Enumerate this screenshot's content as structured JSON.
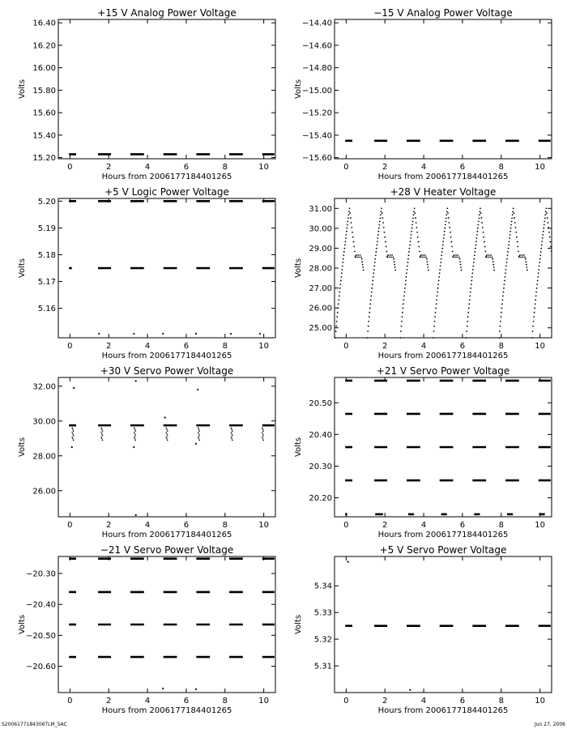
{
  "footer": {
    "left": "S2006177184306TLM_SAC",
    "right": "Jun 27, 2006"
  },
  "chart_data": [
    {
      "type": "scatter",
      "title": "+15 V Analog Power Voltage",
      "xlabel": "Hours from 2006177184401265",
      "ylabel": "Volts",
      "xlim": [
        -0.6,
        10.6
      ],
      "ylim": [
        15.19,
        16.43
      ],
      "xticks": [
        0,
        2,
        4,
        6,
        8,
        10
      ],
      "yticks": [
        15.2,
        15.4,
        15.6,
        15.8,
        16.0,
        16.2,
        16.4
      ],
      "ytick_decimals": 2,
      "bands": [
        {
          "y": 15.23,
          "segments": [
            [
              -0.05,
              0.32
            ],
            [
              1.45,
              2.12
            ],
            [
              3.12,
              3.82
            ],
            [
              4.82,
              5.52
            ],
            [
              6.52,
              7.22
            ],
            [
              8.22,
              8.92
            ],
            [
              9.92,
              10.55
            ]
          ]
        }
      ],
      "points": [],
      "pattern": null
    },
    {
      "type": "scatter",
      "title": "−15 V Analog Power Voltage",
      "xlabel": "Hours from 2006177184401265",
      "ylabel": "Volts",
      "xlim": [
        -0.6,
        10.6
      ],
      "ylim": [
        -15.61,
        -14.37
      ],
      "xticks": [
        0,
        2,
        4,
        6,
        8,
        10
      ],
      "yticks": [
        -15.6,
        -15.4,
        -15.2,
        -15.0,
        -14.8,
        -14.6,
        -14.4
      ],
      "ytick_decimals": 2,
      "bands": [
        {
          "y": -15.45,
          "segments": [
            [
              -0.05,
              0.32
            ],
            [
              1.45,
              2.12
            ],
            [
              3.12,
              3.82
            ],
            [
              4.82,
              5.52
            ],
            [
              6.52,
              7.22
            ],
            [
              8.22,
              8.92
            ],
            [
              9.92,
              10.55
            ]
          ]
        }
      ],
      "points": [],
      "pattern": null
    },
    {
      "type": "scatter",
      "title": "+5 V Logic Power Voltage",
      "xlabel": "Hours from 2006177184401265",
      "ylabel": "Volts",
      "xlim": [
        -0.6,
        10.6
      ],
      "ylim": [
        5.149,
        5.201
      ],
      "xticks": [
        0,
        2,
        4,
        6,
        8,
        10
      ],
      "yticks": [
        5.16,
        5.17,
        5.18,
        5.19,
        5.2
      ],
      "ytick_decimals": 2,
      "bands": [
        {
          "y": 5.2,
          "segments": [
            [
              -0.05,
              0.32
            ],
            [
              1.45,
              2.12
            ],
            [
              3.12,
              3.82
            ],
            [
              4.82,
              5.52
            ],
            [
              6.52,
              7.22
            ],
            [
              8.22,
              8.92
            ],
            [
              9.92,
              10.55
            ]
          ]
        },
        {
          "y": 5.175,
          "segments": [
            [
              -0.05,
              0.1
            ],
            [
              1.45,
              2.12
            ],
            [
              3.12,
              3.82
            ],
            [
              4.82,
              5.52
            ],
            [
              6.52,
              7.22
            ],
            [
              8.22,
              8.92
            ],
            [
              9.92,
              10.55
            ]
          ]
        }
      ],
      "points": [
        [
          1.5,
          5.1505
        ],
        [
          3.3,
          5.1505
        ],
        [
          4.8,
          5.1505
        ],
        [
          6.5,
          5.1505
        ],
        [
          8.3,
          5.1505
        ],
        [
          9.8,
          5.1505
        ]
      ],
      "pattern": null
    },
    {
      "type": "scatter",
      "title": "+28 V Heater Voltage",
      "xlabel": "Hours from 2006177184401265",
      "ylabel": "Volts",
      "xlim": [
        -0.6,
        10.6
      ],
      "ylim": [
        24.5,
        31.5
      ],
      "xticks": [
        0,
        2,
        4,
        6,
        8,
        10
      ],
      "yticks": [
        25,
        26,
        27,
        28,
        29,
        30,
        31
      ],
      "ytick_decimals": 2,
      "bands": [],
      "points": [],
      "pattern": {
        "kind": "sawtooth",
        "starts": [
          -0.55,
          1.1,
          2.8,
          4.5,
          6.2,
          7.9,
          9.6
        ],
        "period": 1.68,
        "ymin": 24.5,
        "ymax": 31.0,
        "plateau": 28.6,
        "low": 27.9
      }
    },
    {
      "type": "scatter",
      "title": "+30 V Servo Power Voltage",
      "xlabel": "Hours from 2006177184401265",
      "ylabel": "Volts",
      "xlim": [
        -0.6,
        10.6
      ],
      "ylim": [
        24.5,
        32.5
      ],
      "xticks": [
        0,
        2,
        4,
        6,
        8,
        10
      ],
      "yticks": [
        26,
        28,
        30,
        32
      ],
      "ytick_decimals": 2,
      "bands": [
        {
          "y": 29.75,
          "segments": [
            [
              -0.05,
              0.32
            ],
            [
              1.45,
              2.12
            ],
            [
              3.12,
              3.82
            ],
            [
              4.82,
              5.52
            ],
            [
              6.52,
              7.22
            ],
            [
              8.22,
              8.92
            ],
            [
              9.92,
              10.55
            ]
          ]
        }
      ],
      "points": [
        [
          0.2,
          31.9
        ],
        [
          3.4,
          32.3
        ],
        [
          6.6,
          31.8
        ],
        [
          4.9,
          30.2
        ],
        [
          0.1,
          28.5
        ],
        [
          3.3,
          28.5
        ],
        [
          6.5,
          28.7
        ],
        [
          3.4,
          24.6
        ]
      ],
      "pattern": {
        "kind": "droops",
        "xs": [
          0.15,
          1.65,
          3.35,
          5.0,
          6.65,
          8.35,
          9.95
        ],
        "from": 29.6,
        "to": 28.9
      }
    },
    {
      "type": "scatter",
      "title": "+21 V Servo Power Voltage",
      "xlabel": "Hours from 2006177184401265",
      "ylabel": "Volts",
      "xlim": [
        -0.6,
        10.6
      ],
      "ylim": [
        20.14,
        20.58
      ],
      "xticks": [
        0,
        2,
        4,
        6,
        8,
        10
      ],
      "yticks": [
        20.2,
        20.3,
        20.4,
        20.5
      ],
      "ytick_decimals": 2,
      "bands": [
        {
          "y": 20.57,
          "segments": [
            [
              -0.05,
              0.32
            ],
            [
              1.45,
              2.12
            ],
            [
              3.12,
              3.82
            ],
            [
              4.82,
              5.52
            ],
            [
              6.52,
              7.22
            ],
            [
              8.22,
              8.92
            ],
            [
              9.92,
              10.55
            ]
          ]
        },
        {
          "y": 20.465,
          "segments": [
            [
              -0.05,
              0.32
            ],
            [
              1.45,
              2.12
            ],
            [
              3.12,
              3.82
            ],
            [
              4.82,
              5.52
            ],
            [
              6.52,
              7.22
            ],
            [
              8.22,
              8.92
            ],
            [
              9.92,
              10.55
            ]
          ]
        },
        {
          "y": 20.36,
          "segments": [
            [
              -0.05,
              0.32
            ],
            [
              1.45,
              2.12
            ],
            [
              3.12,
              3.82
            ],
            [
              4.82,
              5.52
            ],
            [
              6.52,
              7.22
            ],
            [
              8.22,
              8.92
            ],
            [
              9.92,
              10.55
            ]
          ]
        },
        {
          "y": 20.255,
          "segments": [
            [
              -0.05,
              0.32
            ],
            [
              1.45,
              2.12
            ],
            [
              3.12,
              3.82
            ],
            [
              4.82,
              5.52
            ],
            [
              6.52,
              7.22
            ],
            [
              8.22,
              8.92
            ],
            [
              9.92,
              10.55
            ]
          ]
        },
        {
          "y": 20.148,
          "segments": [
            [
              -0.05,
              0.05
            ],
            [
              1.5,
              1.9
            ],
            [
              3.2,
              3.5
            ],
            [
              4.9,
              5.2
            ],
            [
              6.6,
              6.9
            ],
            [
              8.3,
              8.6
            ],
            [
              9.95,
              10.25
            ]
          ]
        }
      ],
      "points": [],
      "pattern": null
    },
    {
      "type": "scatter",
      "title": "−21 V Servo Power Voltage",
      "xlabel": "Hours from 2006177184401265",
      "ylabel": "Volts",
      "xlim": [
        -0.6,
        10.6
      ],
      "ylim": [
        -20.685,
        -20.245
      ],
      "xticks": [
        0,
        2,
        4,
        6,
        8,
        10
      ],
      "yticks": [
        -20.6,
        -20.5,
        -20.4,
        -20.3
      ],
      "ytick_decimals": 2,
      "bands": [
        {
          "y": -20.252,
          "segments": [
            [
              -0.05,
              0.32
            ],
            [
              1.45,
              2.12
            ],
            [
              3.12,
              3.82
            ],
            [
              4.82,
              5.52
            ],
            [
              6.52,
              7.22
            ],
            [
              8.22,
              8.92
            ],
            [
              9.92,
              10.55
            ]
          ]
        },
        {
          "y": -20.36,
          "segments": [
            [
              -0.05,
              0.32
            ],
            [
              1.45,
              2.12
            ],
            [
              3.12,
              3.82
            ],
            [
              4.82,
              5.52
            ],
            [
              6.52,
              7.22
            ],
            [
              8.22,
              8.92
            ],
            [
              9.92,
              10.55
            ]
          ]
        },
        {
          "y": -20.465,
          "segments": [
            [
              -0.05,
              0.32
            ],
            [
              1.45,
              2.12
            ],
            [
              3.12,
              3.82
            ],
            [
              4.82,
              5.52
            ],
            [
              6.52,
              7.22
            ],
            [
              8.22,
              8.92
            ],
            [
              9.92,
              10.55
            ]
          ]
        },
        {
          "y": -20.57,
          "segments": [
            [
              -0.05,
              0.32
            ],
            [
              1.45,
              2.12
            ],
            [
              3.12,
              3.82
            ],
            [
              4.82,
              5.52
            ],
            [
              6.52,
              7.22
            ],
            [
              8.22,
              8.92
            ],
            [
              9.92,
              10.55
            ]
          ]
        }
      ],
      "points": [
        [
          4.8,
          -20.672
        ],
        [
          6.5,
          -20.674
        ]
      ],
      "pattern": null
    },
    {
      "type": "scatter",
      "title": "+5 V Servo Power Voltage",
      "xlabel": "Hours from 2006177184401265",
      "ylabel": "Volts",
      "xlim": [
        -0.6,
        10.6
      ],
      "ylim": [
        5.3,
        5.351
      ],
      "xticks": [
        0,
        2,
        4,
        6,
        8,
        10
      ],
      "yticks": [
        5.31,
        5.32,
        5.33,
        5.34
      ],
      "ytick_decimals": 2,
      "bands": [
        {
          "y": 5.325,
          "segments": [
            [
              -0.05,
              0.32
            ],
            [
              1.45,
              2.12
            ],
            [
              3.12,
              3.82
            ],
            [
              4.82,
              5.52
            ],
            [
              6.52,
              7.22
            ],
            [
              8.22,
              8.92
            ],
            [
              9.92,
              10.55
            ]
          ]
        }
      ],
      "points": [
        [
          0.1,
          5.349
        ],
        [
          3.3,
          5.301
        ]
      ],
      "pattern": null
    }
  ]
}
